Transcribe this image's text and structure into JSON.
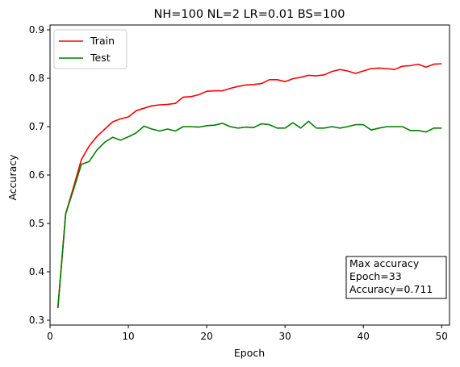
{
  "chart_data": {
    "type": "line",
    "title": "NH=100 NL=2 LR=0.01 BS=100",
    "xlabel": "Epoch",
    "ylabel": "Accuracy",
    "xlim": [
      0,
      51
    ],
    "ylim": [
      0.29,
      0.91
    ],
    "xticks": [
      0,
      10,
      20,
      30,
      40,
      50
    ],
    "yticks": [
      0.3,
      0.4,
      0.5,
      0.6,
      0.7,
      0.8,
      0.9
    ],
    "grid": false,
    "legend_position": "top-left",
    "x": [
      1,
      2,
      3,
      4,
      5,
      6,
      7,
      8,
      9,
      10,
      11,
      12,
      13,
      14,
      15,
      16,
      17,
      18,
      19,
      20,
      21,
      22,
      23,
      24,
      25,
      26,
      27,
      28,
      29,
      30,
      31,
      32,
      33,
      34,
      35,
      36,
      37,
      38,
      39,
      40,
      41,
      42,
      43,
      44,
      45,
      46,
      47,
      48,
      49,
      50
    ],
    "series": [
      {
        "name": "Train",
        "color": "#ff0000",
        "values": [
          0.325,
          0.52,
          0.575,
          0.632,
          0.66,
          0.68,
          0.695,
          0.71,
          0.716,
          0.72,
          0.733,
          0.738,
          0.743,
          0.745,
          0.746,
          0.748,
          0.761,
          0.762,
          0.766,
          0.773,
          0.774,
          0.774,
          0.779,
          0.783,
          0.786,
          0.787,
          0.789,
          0.797,
          0.797,
          0.793,
          0.799,
          0.802,
          0.806,
          0.805,
          0.807,
          0.814,
          0.818,
          0.815,
          0.81,
          0.815,
          0.82,
          0.821,
          0.82,
          0.818,
          0.825,
          0.826,
          0.829,
          0.823,
          0.829,
          0.83
        ]
      },
      {
        "name": "Test",
        "color": "#008000",
        "values": [
          0.325,
          0.52,
          0.57,
          0.622,
          0.628,
          0.652,
          0.668,
          0.678,
          0.672,
          0.679,
          0.687,
          0.701,
          0.695,
          0.691,
          0.695,
          0.691,
          0.7,
          0.7,
          0.699,
          0.702,
          0.703,
          0.707,
          0.7,
          0.697,
          0.699,
          0.698,
          0.706,
          0.704,
          0.697,
          0.697,
          0.708,
          0.697,
          0.711,
          0.697,
          0.697,
          0.7,
          0.697,
          0.7,
          0.704,
          0.704,
          0.693,
          0.697,
          0.7,
          0.7,
          0.7,
          0.692,
          0.692,
          0.689,
          0.697,
          0.697
        ]
      }
    ],
    "annotation": {
      "lines": [
        "Max accuracy",
        "Epoch=33",
        "Accuracy=0.711"
      ]
    }
  }
}
